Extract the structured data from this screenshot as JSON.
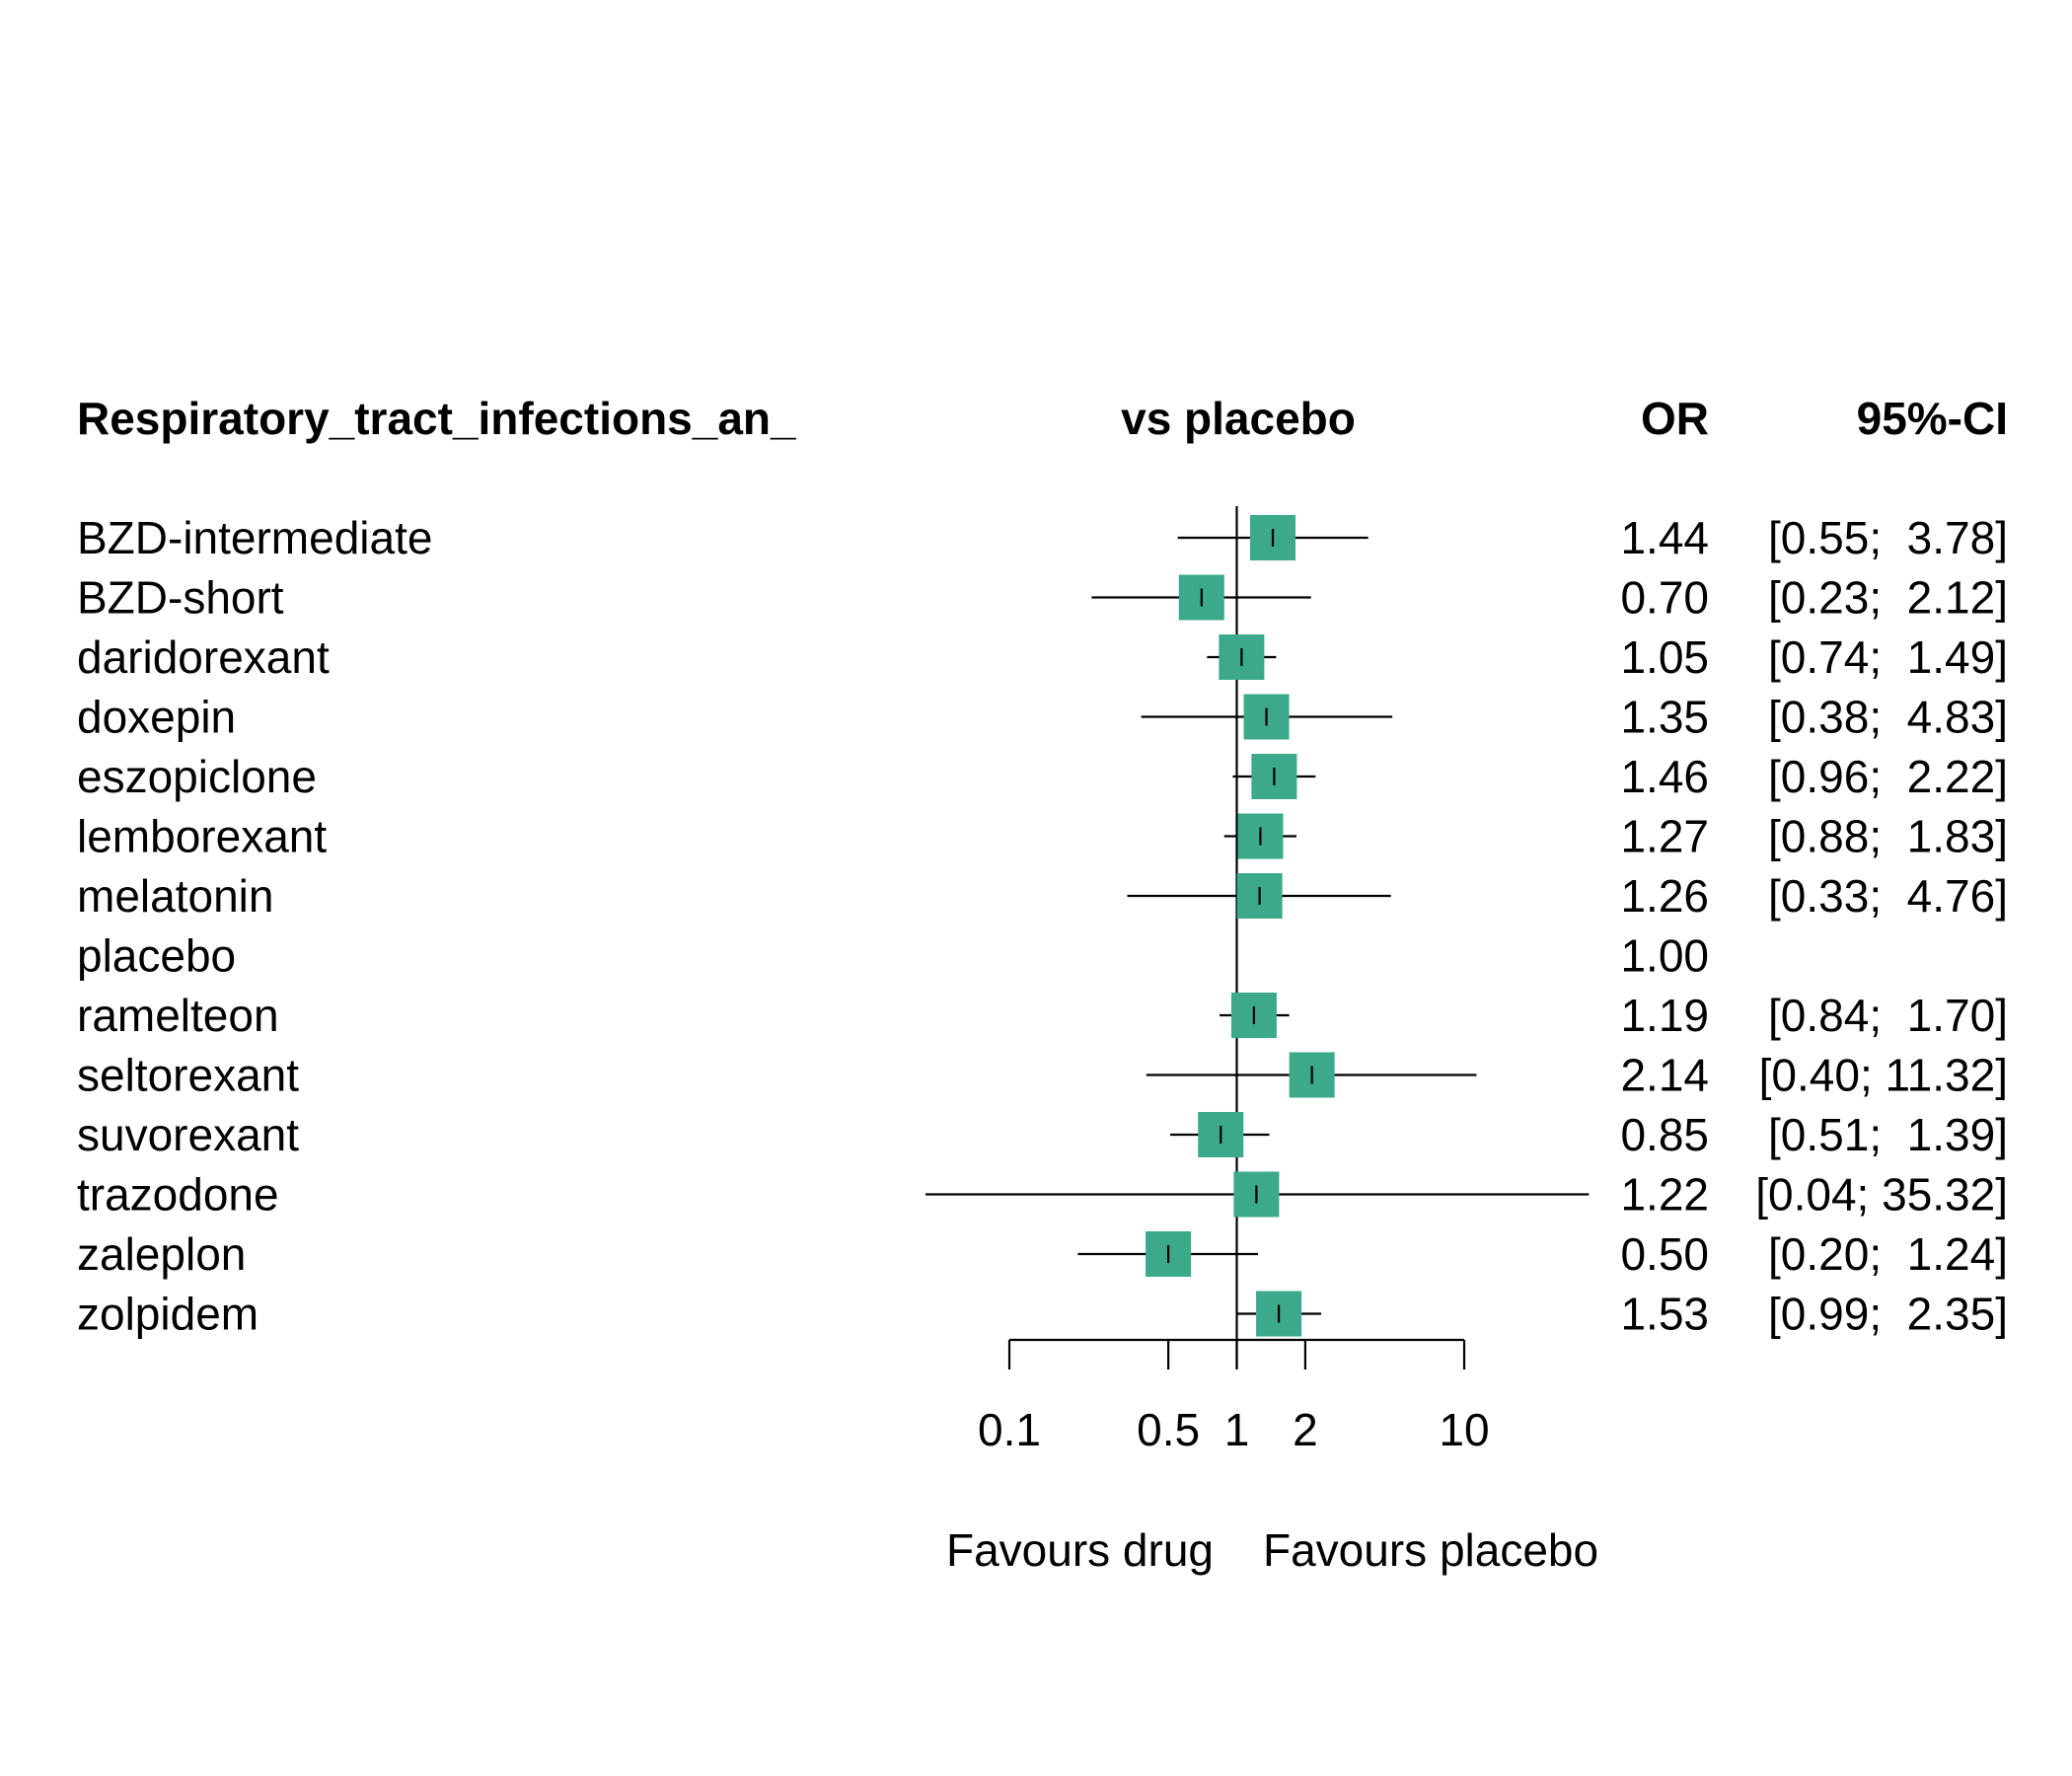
{
  "chart_data": {
    "type": "forest",
    "header": {
      "title": "Respiratory_tract_infections_an_",
      "comparison": "vs placebo",
      "estimate_label": "OR",
      "ci_label": "95%-CI"
    },
    "scale": "log",
    "xlim": [
      0.1,
      10
    ],
    "ticks": [
      {
        "value": 0.1,
        "label": "0.1"
      },
      {
        "value": 0.5,
        "label": "0.5"
      },
      {
        "value": 1,
        "label": "1"
      },
      {
        "value": 2,
        "label": "2"
      },
      {
        "value": 10,
        "label": "10"
      }
    ],
    "reference_value": 1,
    "favours_left": "Favours drug",
    "favours_right": "Favours placebo",
    "marker_color": "#3BA98A",
    "rows": [
      {
        "name": "BZD-intermediate",
        "or": 1.44,
        "lower": 0.55,
        "upper": 3.78,
        "or_text": "1.44",
        "ci_text": "[0.55;  3.78]"
      },
      {
        "name": "BZD-short",
        "or": 0.7,
        "lower": 0.23,
        "upper": 2.12,
        "or_text": "0.70",
        "ci_text": "[0.23;  2.12]"
      },
      {
        "name": "daridorexant",
        "or": 1.05,
        "lower": 0.74,
        "upper": 1.49,
        "or_text": "1.05",
        "ci_text": "[0.74;  1.49]"
      },
      {
        "name": "doxepin",
        "or": 1.35,
        "lower": 0.38,
        "upper": 4.83,
        "or_text": "1.35",
        "ci_text": "[0.38;  4.83]"
      },
      {
        "name": "eszopiclone",
        "or": 1.46,
        "lower": 0.96,
        "upper": 2.22,
        "or_text": "1.46",
        "ci_text": "[0.96;  2.22]"
      },
      {
        "name": "lemborexant",
        "or": 1.27,
        "lower": 0.88,
        "upper": 1.83,
        "or_text": "1.27",
        "ci_text": "[0.88;  1.83]"
      },
      {
        "name": "melatonin",
        "or": 1.26,
        "lower": 0.33,
        "upper": 4.76,
        "or_text": "1.26",
        "ci_text": "[0.33;  4.76]"
      },
      {
        "name": "placebo",
        "or": 1.0,
        "lower": null,
        "upper": null,
        "or_text": "1.00",
        "ci_text": ""
      },
      {
        "name": "ramelteon",
        "or": 1.19,
        "lower": 0.84,
        "upper": 1.7,
        "or_text": "1.19",
        "ci_text": "[0.84;  1.70]"
      },
      {
        "name": "seltorexant",
        "or": 2.14,
        "lower": 0.4,
        "upper": 11.32,
        "or_text": "2.14",
        "ci_text": "[0.40; 11.32]"
      },
      {
        "name": "suvorexant",
        "or": 0.85,
        "lower": 0.51,
        "upper": 1.39,
        "or_text": "0.85",
        "ci_text": "[0.51;  1.39]"
      },
      {
        "name": "trazodone",
        "or": 1.22,
        "lower": 0.04,
        "upper": 35.32,
        "or_text": "1.22",
        "ci_text": "[0.04; 35.32]"
      },
      {
        "name": "zaleplon",
        "or": 0.5,
        "lower": 0.2,
        "upper": 1.24,
        "or_text": "0.50",
        "ci_text": "[0.20;  1.24]"
      },
      {
        "name": "zolpidem",
        "or": 1.53,
        "lower": 0.99,
        "upper": 2.35,
        "or_text": "1.53",
        "ci_text": "[0.99;  2.35]"
      }
    ]
  }
}
